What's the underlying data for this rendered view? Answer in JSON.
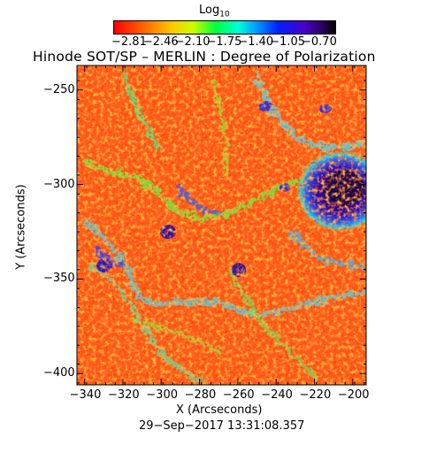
{
  "colorbar": {
    "label_main": "Log",
    "label_sub": "10",
    "ticks": [
      "−2.81",
      "−2.46",
      "−2.10",
      "−1.75",
      "−1.40",
      "−1.05",
      "−0.70"
    ],
    "range": [
      -2.81,
      -0.7
    ],
    "colors": [
      "#ff0000",
      "#ff7f00",
      "#ffff00",
      "#00ff00",
      "#00ffff",
      "#0000ff",
      "#6a00c0",
      "#000000"
    ]
  },
  "title": "Hinode SOT/SP – MERLIN : Degree of Polarization",
  "xaxis": {
    "label": "X (Arcseconds)",
    "ticks": [
      "−340",
      "−320",
      "−300",
      "−280",
      "−260",
      "−240",
      "−220",
      "−200"
    ],
    "values": [
      -340,
      -320,
      -300,
      -280,
      -260,
      -240,
      -220,
      -200
    ],
    "range": [
      -344,
      -193
    ]
  },
  "yaxis": {
    "label": "Y (Arcseconds)",
    "ticks": [
      "−250",
      "−300",
      "−350",
      "−400"
    ],
    "values": [
      -250,
      -300,
      -350,
      -400
    ],
    "range": [
      -406,
      -237
    ]
  },
  "timestamp": "29−Sep−2017 13:31:08.357",
  "image": {
    "content": "solar polarization map",
    "dominant_color": "#ff5a1a",
    "sunspot_color": "#1a006a"
  }
}
